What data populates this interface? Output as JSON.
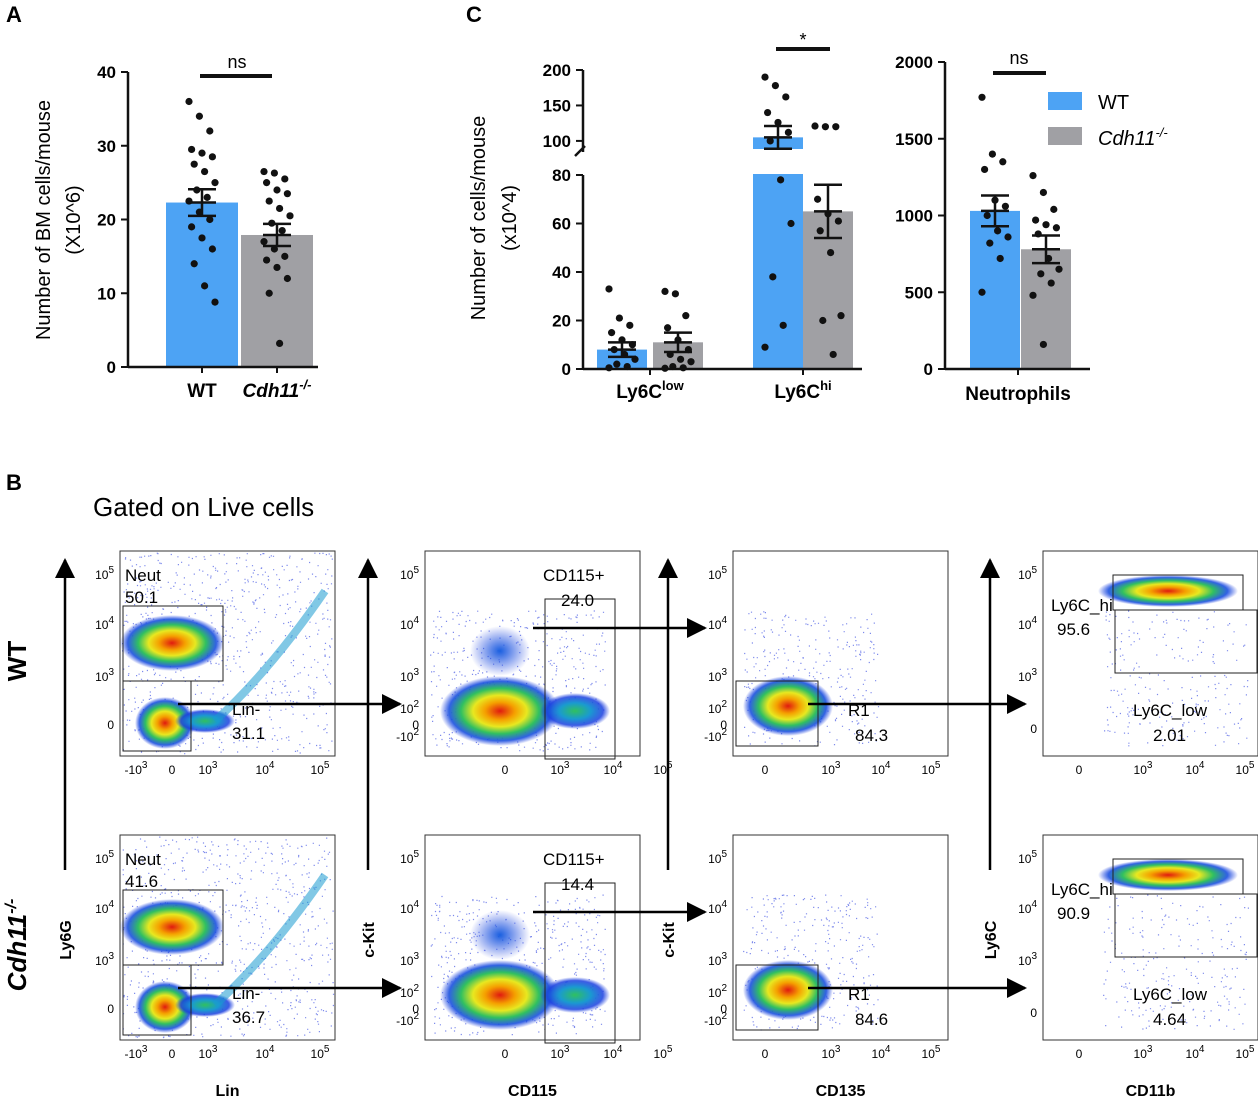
{
  "colors": {
    "wt": "#4da3f4",
    "cdh11": "#a0a0a4",
    "axis": "#111111",
    "dot": "#111111"
  },
  "panel_labels": {
    "a": "A",
    "b": "B",
    "c": "C"
  },
  "legend": {
    "wt": "WT",
    "cdh11_base": "Cdh11",
    "cdh11_sup": "-/-"
  },
  "chart_data": [
    {
      "type": "bar",
      "panel": "A",
      "ylabel_line1": "Number of BM cells/mouse",
      "ylabel_line2": "(X10^6)",
      "ylim": [
        0,
        40
      ],
      "yticks": [
        "0",
        "10",
        "20",
        "30",
        "40"
      ],
      "categories": [
        {
          "label": "WT",
          "sup": "",
          "italic": false
        },
        {
          "label": "Cdh11",
          "sup": "-/-",
          "italic": true
        }
      ],
      "series": [
        {
          "name": "WT",
          "mean": 22.3,
          "sem": 1.8,
          "points": [
            36,
            34,
            32,
            29.5,
            29,
            28.5,
            27.5,
            26.5,
            25,
            24,
            23,
            22.5,
            21,
            20,
            19,
            17.5,
            16,
            14,
            11,
            8.8
          ]
        },
        {
          "name": "Cdh11-/-",
          "mean": 17.9,
          "sem": 1.5,
          "points": [
            26.5,
            26.3,
            25.5,
            25,
            24,
            23.5,
            22.5,
            21.5,
            20.5,
            19.5,
            18.5,
            17,
            16,
            15,
            14.5,
            13.5,
            12,
            10,
            3.2
          ]
        }
      ],
      "significance": "ns"
    },
    {
      "type": "bar",
      "panel": "C-left",
      "ylabel_line1": "Number of cells/mouse",
      "ylabel_line2": "(x10^4)",
      "ylim_lower": [
        0,
        80
      ],
      "ylim_upper": [
        90,
        200
      ],
      "yticks_lower": [
        "0",
        "20",
        "40",
        "60",
        "80"
      ],
      "yticks_upper": [
        "100",
        "150",
        "200"
      ],
      "categories": [
        {
          "label": "Ly6C",
          "sup": "low"
        },
        {
          "label": "Ly6C",
          "sup": "hi"
        }
      ],
      "series": [
        {
          "name": "WT",
          "means": [
            8,
            105
          ],
          "sems": [
            3,
            16
          ],
          "points": [
            [
              33,
              21,
              18,
              15,
              12,
              10,
              8,
              6,
              4,
              2,
              1,
              0.5
            ],
            [
              190,
              178,
              162,
              140,
              126,
              112,
              100,
              78,
              60,
              38,
              18,
              9
            ]
          ]
        },
        {
          "name": "Cdh11-/-",
          "means": [
            11,
            65
          ],
          "sems": [
            4,
            11
          ],
          "points": [
            [
              32,
              31,
              22,
              17,
              12,
              8,
              6,
              4,
              3,
              1,
              0.5,
              0.3
            ],
            [
              121,
              120,
              120,
              70,
              64,
              61,
              57,
              48,
              22,
              20,
              6
            ]
          ]
        }
      ],
      "significance": [
        "",
        "*"
      ]
    },
    {
      "type": "bar",
      "panel": "C-right",
      "ylim": [
        0,
        2000
      ],
      "yticks": [
        "0",
        "500",
        "1000",
        "1500",
        "2000"
      ],
      "categories": [
        {
          "label": "Neutrophils",
          "sup": ""
        }
      ],
      "series": [
        {
          "name": "WT",
          "mean": 1030,
          "sem": 100,
          "points": [
            1770,
            1400,
            1350,
            1300,
            1100,
            1060,
            1000,
            900,
            860,
            820,
            720,
            500
          ]
        },
        {
          "name": "Cdh11-/-",
          "mean": 780,
          "sem": 90,
          "points": [
            1260,
            1150,
            1040,
            970,
            940,
            920,
            880,
            720,
            650,
            620,
            560,
            480,
            160
          ]
        }
      ],
      "significance": "ns"
    }
  ],
  "flow": {
    "subtitle": "Gated on Live cells",
    "rows": [
      {
        "name": "WT",
        "sup": "",
        "gates": {
          "neut": "50.1",
          "lin": "31.1",
          "cd115": "24.0",
          "r1": "84.3",
          "hi": "95.6",
          "low": "2.01"
        }
      },
      {
        "name": "Cdh11",
        "sup": "-/-",
        "gates": {
          "neut": "41.6",
          "lin": "36.7",
          "cd115": "14.4",
          "r1": "84.6",
          "hi": "90.9",
          "low": "4.64"
        }
      }
    ],
    "gate_names": {
      "neut": "Neut",
      "lin": "Lin-",
      "cd115": "CD115+",
      "r1": "R1",
      "hi": "Ly6C_hi",
      "low": "Ly6C_low"
    },
    "x_axes": [
      "Lin",
      "CD115",
      "CD135",
      "CD11b"
    ],
    "y_axes": [
      "Ly6G",
      "c-Kit",
      "c-Kit",
      "Ly6C"
    ]
  }
}
